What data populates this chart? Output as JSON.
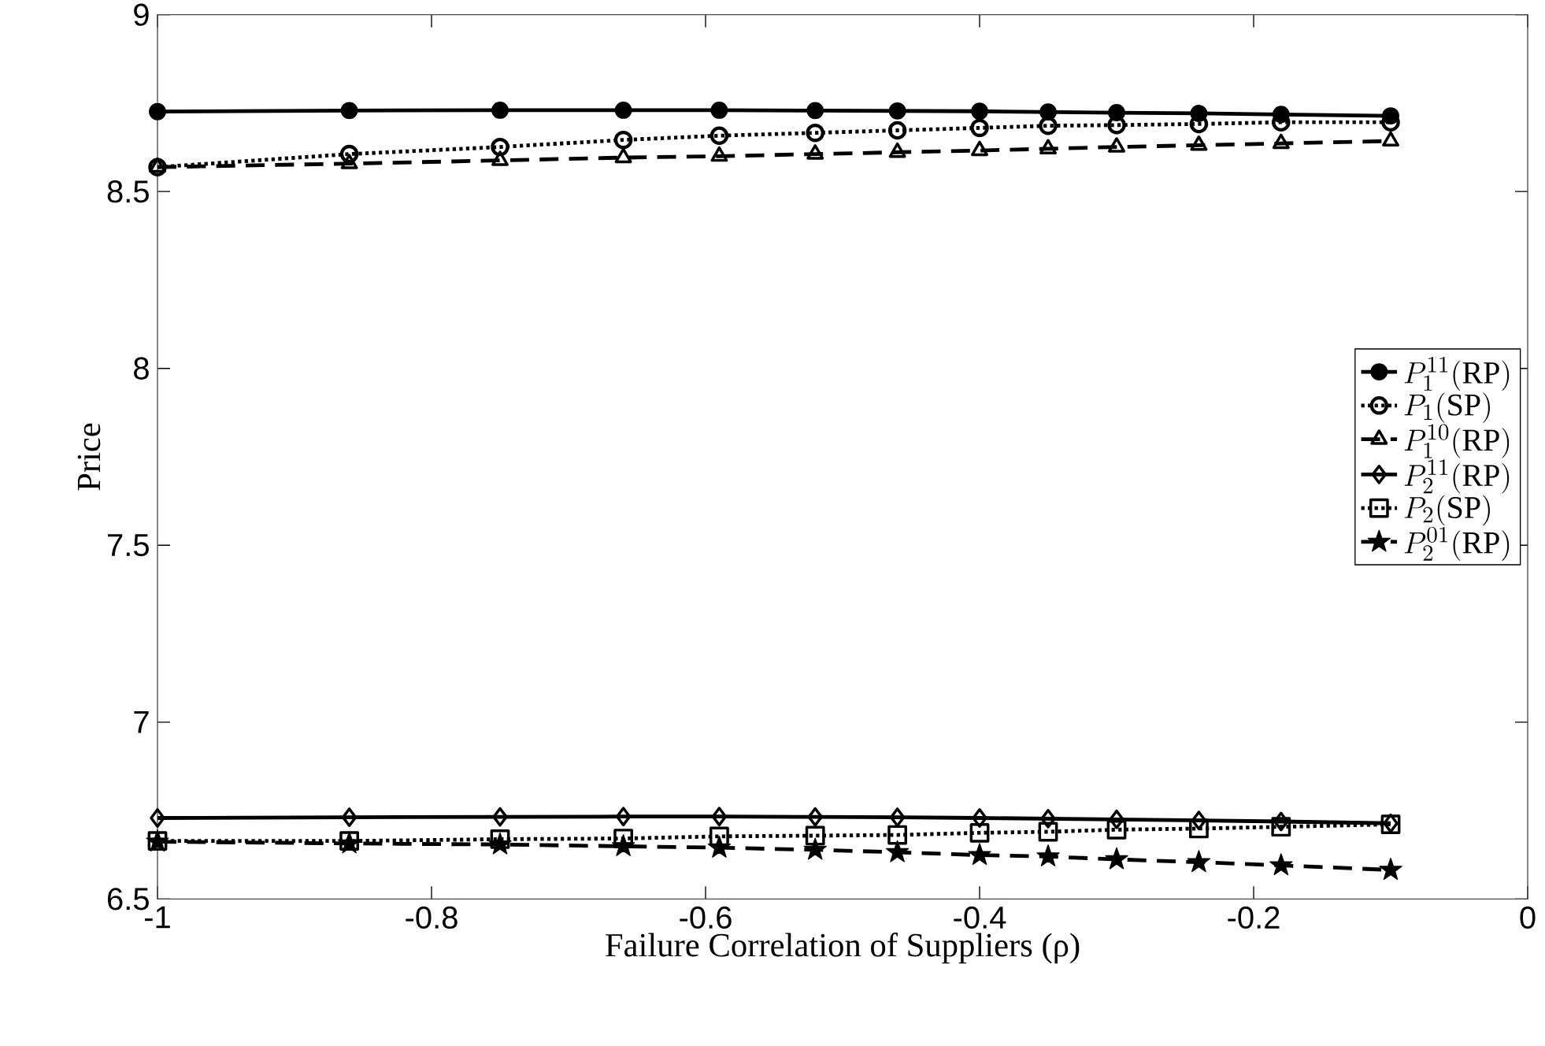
{
  "chart_data": {
    "type": "line",
    "xlabel": "Failure Correlation of Suppliers (ρ)",
    "ylabel": "Price",
    "x": [
      -1,
      -0.86,
      -0.75,
      -0.66,
      -0.59,
      -0.52,
      -0.46,
      -0.4,
      -0.35,
      -0.3,
      -0.24,
      -0.18,
      -0.1
    ],
    "xlim": [
      -1,
      0
    ],
    "xticks": [
      -1,
      -0.8,
      -0.6,
      -0.4,
      -0.2,
      0
    ],
    "ylim": [
      6.5,
      9
    ],
    "yticks": [
      6.5,
      7,
      7.5,
      8,
      8.5,
      9
    ],
    "legend": "right",
    "grid": false,
    "series": [
      {
        "name": "P_1^{11}(\\mathrm{RP})",
        "color": "#000000",
        "marker": "circle",
        "line_style": "solid",
        "values": [
          8.726,
          8.729,
          8.73,
          8.73,
          8.73,
          8.729,
          8.728,
          8.727,
          8.725,
          8.723,
          8.721,
          8.718,
          8.714
        ]
      },
      {
        "name": "P_1(\\mathrm{SP})",
        "color": "#000000",
        "marker": "circle",
        "line_style": "dotted",
        "values": [
          8.569,
          8.606,
          8.626,
          8.646,
          8.658,
          8.666,
          8.673,
          8.68,
          8.686,
          8.688,
          8.691,
          8.696,
          8.696
        ]
      },
      {
        "name": "P_1^{10}(\\mathrm{RP})",
        "color": "#000000",
        "marker": "triangle",
        "line_style": "dashed",
        "values": [
          8.569,
          8.579,
          8.588,
          8.596,
          8.6,
          8.606,
          8.611,
          8.616,
          8.621,
          8.626,
          8.631,
          8.636,
          8.643
        ]
      },
      {
        "name": "P_2^{11}(\\mathrm{RP})",
        "color": "#000000",
        "marker": "diamond",
        "line_style": "solid",
        "values": [
          6.729,
          6.731,
          6.732,
          6.733,
          6.733,
          6.732,
          6.731,
          6.729,
          6.727,
          6.725,
          6.722,
          6.719,
          6.714
        ]
      },
      {
        "name": "P_2(\\mathrm{SP})",
        "color": "#000000",
        "marker": "square",
        "line_style": "dotted",
        "values": [
          6.664,
          6.664,
          6.669,
          6.671,
          6.677,
          6.679,
          6.681,
          6.687,
          6.69,
          6.696,
          6.699,
          6.704,
          6.711
        ]
      },
      {
        "name": "P_2^{01}(\\mathrm{RP})",
        "color": "#000000",
        "marker": "star",
        "line_style": "dashed",
        "values": [
          6.662,
          6.657,
          6.654,
          6.649,
          6.645,
          6.639,
          6.632,
          6.624,
          6.62,
          6.612,
          6.604,
          6.595,
          6.582
        ]
      }
    ]
  }
}
